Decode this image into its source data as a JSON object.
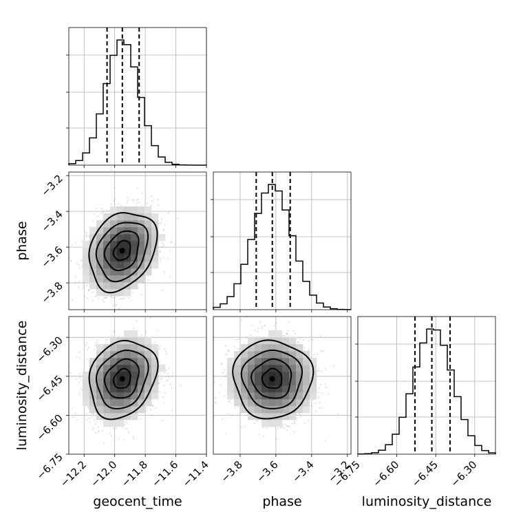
{
  "chart_data": {
    "type": "corner",
    "parameters": [
      "geocent_time",
      "phase",
      "luminosity_distance"
    ],
    "ranges": {
      "geocent_time": [
        -12.3,
        -11.4
      ],
      "phase": [
        -3.95,
        -3.18
      ],
      "luminosity_distance": [
        -6.75,
        -6.22
      ]
    },
    "ticks": {
      "geocent_time": [
        -12.2,
        -12.0,
        -11.8,
        -11.6,
        -11.4
      ],
      "phase": [
        -3.8,
        -3.6,
        -3.4,
        -3.2
      ],
      "luminosity_distance": [
        -6.75,
        -6.6,
        -6.45,
        -6.3
      ]
    },
    "tick_labels": {
      "geocent_time": [
        "−12.2",
        "−12.0",
        "−11.8",
        "−11.6",
        "−11.4"
      ],
      "phase": [
        "−3.8",
        "−3.6",
        "−3.4",
        "−3.2"
      ],
      "luminosity_distance": [
        "−6.75",
        "−6.60",
        "−6.45",
        "−6.30"
      ]
    },
    "ylabel_tick_labels": {
      "phase": [
        "−3.2",
        "−3.4",
        "−3.6",
        "−3.8"
      ],
      "luminosity_distance": [
        "−6.30",
        "−6.45",
        "−6.60",
        "−6.75"
      ]
    },
    "means": {
      "geocent_time": -11.95,
      "phase": -3.62,
      "luminosity_distance": -6.46
    },
    "sigmas": {
      "geocent_time": 0.11,
      "phase": 0.11,
      "luminosity_distance": 0.075
    },
    "quantiles": {
      "geocent_time": [
        -12.05,
        -11.95,
        -11.84
      ],
      "phase": [
        -3.71,
        -3.62,
        -3.52
      ],
      "luminosity_distance": [
        -6.53,
        -6.465,
        -6.395
      ]
    },
    "correlations": {
      "geocent_time|phase": 0.25,
      "geocent_time|luminosity_distance": 0.2,
      "phase|luminosity_distance": 0.0
    },
    "histogram_bins": 20,
    "grid": true
  }
}
